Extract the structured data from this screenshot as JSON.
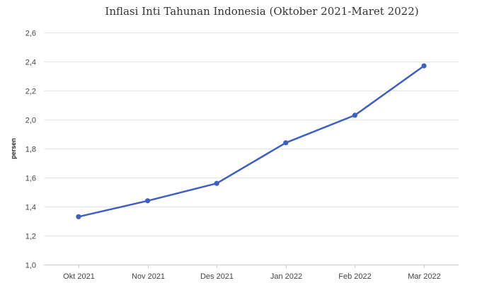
{
  "chart_data": {
    "type": "line",
    "title": "Inflasi Inti Tahunan Indonesia (Oktober 2021-Maret 2022)",
    "xlabel": "",
    "ylabel": "persen",
    "categories": [
      "Okt 2021",
      "Nov 2021",
      "Des 2021",
      "Jan 2022",
      "Feb 2022",
      "Mar 2022"
    ],
    "series": [
      {
        "values": [
          1.33,
          1.44,
          1.56,
          1.84,
          2.03,
          2.37
        ]
      }
    ],
    "ylim": [
      1.0,
      2.6
    ],
    "yticks": [
      1.0,
      1.2,
      1.4,
      1.6,
      1.8,
      2.0,
      2.2,
      2.4,
      2.6
    ],
    "ytick_labels": [
      "1,0",
      "1,2",
      "1,4",
      "1,6",
      "1,8",
      "2,0",
      "2,2",
      "2,4",
      "2,6"
    ],
    "grid": true,
    "legend": "none",
    "colors": {
      "line": "#3f5fbf",
      "grid": "#e6e6e6"
    }
  }
}
